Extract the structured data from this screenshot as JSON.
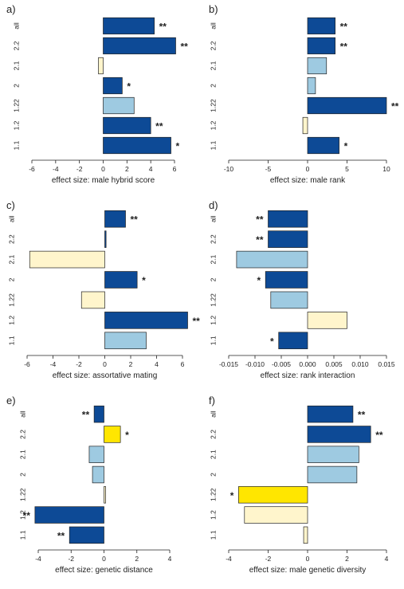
{
  "colors": {
    "dark_blue": "#0d4a96",
    "light_blue": "#9ecae1",
    "cream": "#fff5cc",
    "yellow": "#ffe600",
    "stroke": "#222222"
  },
  "chart_data": [
    {
      "type": "bar",
      "panel_label": "a)",
      "xlabel": "effect size: male hybrid score",
      "xlim": [
        -6,
        6
      ],
      "xticks": [
        -6,
        -4,
        -2,
        0,
        2,
        4,
        6
      ],
      "xtick_labels": [
        "-6",
        "-4",
        "-2",
        "0",
        "2",
        "4",
        "6"
      ],
      "categories": [
        "all",
        "2.2",
        "2.1",
        "2",
        "1.22",
        "1.2",
        "1.1"
      ],
      "values": [
        4.3,
        6.1,
        -0.4,
        1.6,
        2.6,
        4.0,
        5.7
      ],
      "colors": [
        "dark_blue",
        "dark_blue",
        "cream",
        "dark_blue",
        "light_blue",
        "dark_blue",
        "dark_blue"
      ],
      "significance": [
        "**",
        "**",
        "",
        "*",
        "",
        "**",
        "*"
      ]
    },
    {
      "type": "bar",
      "panel_label": "b)",
      "xlabel": "effect size: male rank",
      "xlim": [
        -10,
        10
      ],
      "xticks": [
        -10,
        -5,
        0,
        5,
        10
      ],
      "xtick_labels": [
        "-10",
        "-5",
        "0",
        "5",
        "10"
      ],
      "categories": [
        "all",
        "2.2",
        "2.1",
        "2",
        "1.22",
        "1.2",
        "1.1"
      ],
      "values": [
        3.5,
        3.5,
        2.4,
        1.0,
        10.0,
        -0.6,
        4.0
      ],
      "colors": [
        "dark_blue",
        "dark_blue",
        "light_blue",
        "light_blue",
        "dark_blue",
        "cream",
        "dark_blue"
      ],
      "significance": [
        "**",
        "**",
        "",
        "",
        "**",
        "",
        "*"
      ]
    },
    {
      "type": "bar",
      "panel_label": "c)",
      "xlabel": "effect size: assortative mating",
      "xlim": [
        -6,
        6
      ],
      "xticks": [
        -6,
        -4,
        -2,
        0,
        2,
        4,
        6
      ],
      "xtick_labels": [
        "-6",
        "-4",
        "-2",
        "0",
        "2",
        "4",
        "6"
      ],
      "categories": [
        "all",
        "2.2",
        "2.1",
        "2",
        "1.22",
        "1.2",
        "1.1"
      ],
      "values": [
        1.6,
        0.1,
        -5.8,
        2.5,
        -1.8,
        6.4,
        3.2
      ],
      "colors": [
        "dark_blue",
        "dark_blue",
        "cream",
        "dark_blue",
        "cream",
        "dark_blue",
        "light_blue"
      ],
      "significance": [
        "**",
        "",
        "",
        "*",
        "",
        "**",
        ""
      ]
    },
    {
      "type": "bar",
      "panel_label": "d)",
      "xlabel": "effect size: rank interaction",
      "xlim": [
        -0.015,
        0.015
      ],
      "xticks": [
        -0.015,
        -0.01,
        -0.005,
        0,
        0.005,
        0.01,
        0.015
      ],
      "xtick_labels": [
        "-0.015",
        "-0.010",
        "-0.005",
        "0.000",
        "0.005",
        "0.010",
        "0.015"
      ],
      "categories": [
        "all",
        "2.2",
        "2.1",
        "2",
        "1.22",
        "1.2",
        "1.1"
      ],
      "values": [
        -0.0075,
        -0.0075,
        -0.0135,
        -0.008,
        -0.007,
        0.0075,
        -0.0055
      ],
      "colors": [
        "dark_blue",
        "dark_blue",
        "light_blue",
        "dark_blue",
        "light_blue",
        "cream",
        "dark_blue"
      ],
      "significance": [
        "**",
        "**",
        "",
        "*",
        "",
        "",
        "*"
      ]
    },
    {
      "type": "bar",
      "panel_label": "e)",
      "xlabel": "effect size: genetic distance",
      "xlim": [
        -4,
        4
      ],
      "xticks": [
        -4,
        -2,
        0,
        2,
        4
      ],
      "xtick_labels": [
        "-4",
        "-2",
        "0",
        "2",
        "4"
      ],
      "categories": [
        "all",
        "2.2",
        "2.1",
        "2",
        "1.22",
        "1.2",
        "1.1"
      ],
      "values": [
        -0.6,
        1.0,
        -0.9,
        -0.7,
        0.1,
        -4.2,
        -2.1
      ],
      "colors": [
        "dark_blue",
        "yellow",
        "light_blue",
        "light_blue",
        "cream",
        "dark_blue",
        "dark_blue"
      ],
      "significance": [
        "**",
        "*",
        "",
        "",
        "",
        "**",
        "**"
      ]
    },
    {
      "type": "bar",
      "panel_label": "f)",
      "xlabel": "effect size: male genetic diversity",
      "xlim": [
        -4,
        4
      ],
      "xticks": [
        -4,
        -2,
        0,
        2,
        4
      ],
      "xtick_labels": [
        "-4",
        "-2",
        "0",
        "2",
        "4"
      ],
      "categories": [
        "all",
        "2.2",
        "2.1",
        "2",
        "1.22",
        "1.2",
        "1.1"
      ],
      "values": [
        2.3,
        3.2,
        2.6,
        2.5,
        -3.5,
        -3.2,
        -0.2
      ],
      "colors": [
        "dark_blue",
        "dark_blue",
        "light_blue",
        "light_blue",
        "yellow",
        "cream",
        "cream"
      ],
      "significance": [
        "**",
        "**",
        "",
        "",
        "*",
        "",
        ""
      ]
    }
  ]
}
